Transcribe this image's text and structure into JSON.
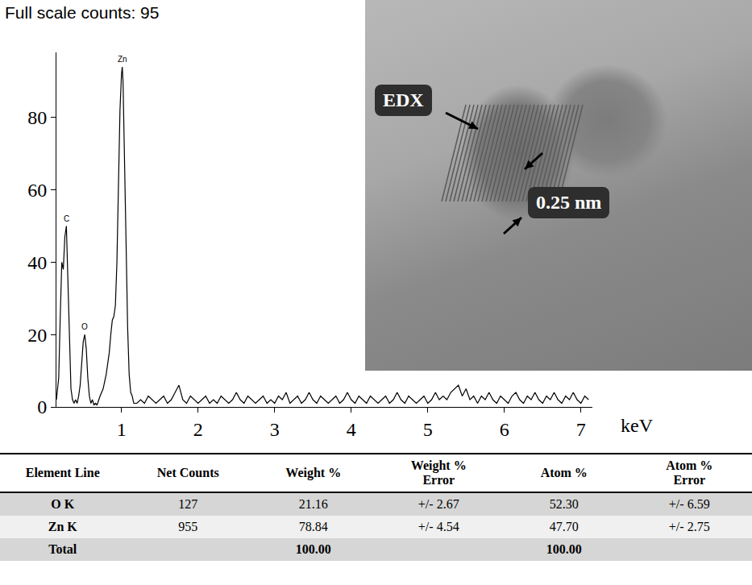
{
  "chart_data": {
    "type": "line",
    "title": "Full scale counts: 95",
    "xlabel": "keV",
    "color": "#000000",
    "x": [
      0.15,
      0.18,
      0.2,
      0.22,
      0.24,
      0.26,
      0.28,
      0.3,
      0.32,
      0.34,
      0.36,
      0.38,
      0.4,
      0.42,
      0.44,
      0.46,
      0.48,
      0.5,
      0.52,
      0.54,
      0.56,
      0.58,
      0.6,
      0.62,
      0.64,
      0.66,
      0.68,
      0.7,
      0.72,
      0.74,
      0.76,
      0.78,
      0.8,
      0.82,
      0.84,
      0.86,
      0.88,
      0.9,
      0.92,
      0.94,
      0.96,
      0.98,
      1.0,
      1.01,
      1.02,
      1.04,
      1.06,
      1.08,
      1.1,
      1.12,
      1.14,
      1.16,
      1.2,
      1.25,
      1.3,
      1.35,
      1.4,
      1.45,
      1.5,
      1.55,
      1.6,
      1.65,
      1.7,
      1.75,
      1.8,
      1.85,
      1.9,
      1.95,
      2.0,
      2.05,
      2.1,
      2.15,
      2.2,
      2.25,
      2.3,
      2.35,
      2.4,
      2.45,
      2.5,
      2.55,
      2.6,
      2.65,
      2.7,
      2.75,
      2.8,
      2.85,
      2.9,
      2.95,
      3.0,
      3.05,
      3.1,
      3.15,
      3.2,
      3.25,
      3.3,
      3.35,
      3.4,
      3.45,
      3.5,
      3.55,
      3.6,
      3.65,
      3.7,
      3.75,
      3.8,
      3.85,
      3.9,
      3.95,
      4.0,
      4.05,
      4.1,
      4.15,
      4.2,
      4.25,
      4.3,
      4.35,
      4.4,
      4.45,
      4.5,
      4.55,
      4.6,
      4.65,
      4.7,
      4.75,
      4.8,
      4.85,
      4.9,
      4.95,
      5.0,
      5.05,
      5.1,
      5.15,
      5.2,
      5.25,
      5.3,
      5.35,
      5.4,
      5.45,
      5.5,
      5.55,
      5.6,
      5.65,
      5.7,
      5.75,
      5.8,
      5.85,
      5.9,
      5.95,
      6.0,
      6.05,
      6.1,
      6.15,
      6.2,
      6.25,
      6.3,
      6.35,
      6.4,
      6.45,
      6.5,
      6.55,
      6.6,
      6.65,
      6.7,
      6.75,
      6.8,
      6.85,
      6.9,
      6.95,
      7.0,
      7.05,
      7.1
    ],
    "values": [
      2,
      8,
      25,
      40,
      38,
      47,
      50,
      35,
      15,
      5,
      2,
      1,
      2,
      1,
      3,
      6,
      12,
      18,
      20,
      16,
      8,
      3,
      1,
      2,
      0.5,
      1,
      0.5,
      2,
      3,
      4,
      5,
      7,
      9,
      12,
      15,
      20,
      24,
      25,
      28,
      40,
      62,
      82,
      92,
      94,
      90,
      70,
      45,
      22,
      9,
      4,
      3,
      1,
      1,
      2,
      1,
      3,
      2,
      1,
      2,
      3,
      1,
      2,
      4,
      6,
      2,
      1,
      3,
      2,
      1,
      2,
      3,
      1,
      2,
      1,
      3,
      2,
      1,
      2,
      4,
      2,
      1,
      3,
      2,
      1,
      2,
      3,
      1,
      2,
      1,
      3,
      2,
      4,
      1,
      2,
      3,
      1,
      2,
      4,
      2,
      1,
      3,
      2,
      1,
      2,
      3,
      1,
      2,
      4,
      2,
      1,
      3,
      2,
      1,
      3,
      2,
      1,
      2,
      3,
      1,
      2,
      4,
      2,
      1,
      3,
      2,
      1,
      2,
      3,
      1,
      2,
      4,
      2,
      3,
      2,
      4,
      5,
      6,
      3,
      5,
      2,
      3,
      1,
      3,
      2,
      4,
      2,
      1,
      3,
      2,
      1,
      3,
      4,
      2,
      1,
      3,
      2,
      4,
      2,
      1,
      3,
      2,
      4,
      2,
      1,
      3,
      2,
      4,
      2,
      1,
      3,
      2
    ],
    "annotations": [
      {
        "text": "C",
        "x": 0.28,
        "y": 50
      },
      {
        "text": "O",
        "x": 0.52,
        "y": 20
      },
      {
        "text": "Zn",
        "x": 1.01,
        "y": 94
      }
    ],
    "xlim": [
      0.15,
      7.15
    ],
    "xticks": [
      1,
      2,
      3,
      4,
      5,
      6,
      7
    ],
    "ylim": [
      0,
      98
    ],
    "yticks": [
      0,
      20,
      40,
      60,
      80
    ],
    "grid": false
  },
  "image": {
    "labels": [
      "EDX",
      "0.25 nm"
    ]
  },
  "table": {
    "header": [
      "Element Line",
      "Net Counts",
      "Weight %",
      "Weight % Error",
      "Atom %",
      "Atom % Error"
    ],
    "rows": [
      [
        "O K",
        "127",
        "21.16",
        "+/- 2.67",
        "52.30",
        "+/- 6.59"
      ],
      [
        "Zn K",
        "955",
        "78.84",
        "+/- 4.54",
        "47.70",
        "+/- 2.75"
      ],
      [
        "Total",
        "",
        "100.00",
        "",
        "100.00",
        ""
      ]
    ]
  }
}
